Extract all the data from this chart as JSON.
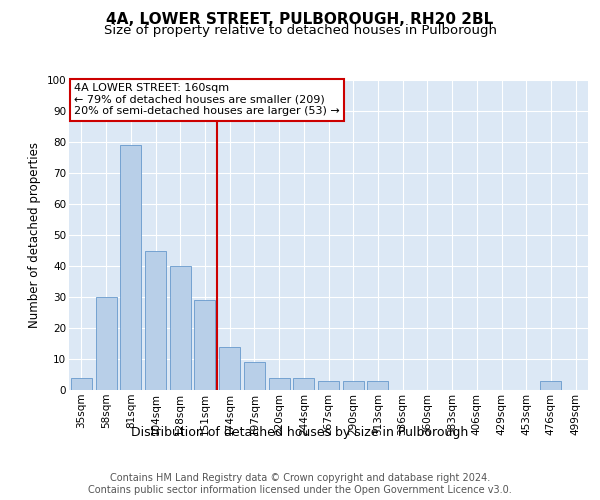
{
  "title1": "4A, LOWER STREET, PULBOROUGH, RH20 2BL",
  "title2": "Size of property relative to detached houses in Pulborough",
  "xlabel": "Distribution of detached houses by size in Pulborough",
  "ylabel": "Number of detached properties",
  "footnote1": "Contains HM Land Registry data © Crown copyright and database right 2024.",
  "footnote2": "Contains public sector information licensed under the Open Government Licence v3.0.",
  "categories": [
    "35sqm",
    "58sqm",
    "81sqm",
    "104sqm",
    "128sqm",
    "151sqm",
    "174sqm",
    "197sqm",
    "220sqm",
    "244sqm",
    "267sqm",
    "290sqm",
    "313sqm",
    "336sqm",
    "360sqm",
    "383sqm",
    "406sqm",
    "429sqm",
    "453sqm",
    "476sqm",
    "499sqm"
  ],
  "values": [
    4,
    30,
    79,
    45,
    40,
    29,
    14,
    9,
    4,
    4,
    3,
    3,
    3,
    0,
    0,
    0,
    0,
    0,
    0,
    3,
    0
  ],
  "bar_color": "#b8cfe8",
  "bar_edge_color": "#6699cc",
  "vline_x": 5.5,
  "vline_color": "#cc0000",
  "annotation_text": "4A LOWER STREET: 160sqm\n← 79% of detached houses are smaller (209)\n20% of semi-detached houses are larger (53) →",
  "annotation_box_color": "#ffffff",
  "annotation_box_edge": "#cc0000",
  "background_color": "#dce8f5",
  "ylim": [
    0,
    100
  ],
  "title1_fontsize": 11,
  "title2_fontsize": 9.5,
  "xlabel_fontsize": 9,
  "ylabel_fontsize": 8.5,
  "tick_fontsize": 7.5,
  "annotation_fontsize": 8,
  "footnote_fontsize": 7
}
